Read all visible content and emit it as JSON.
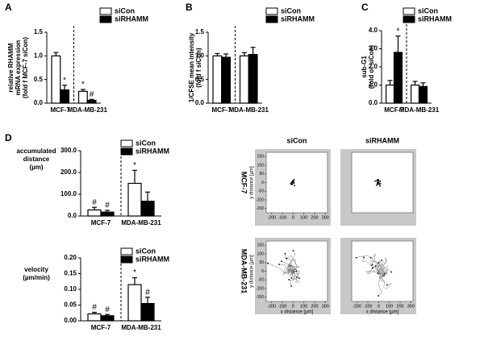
{
  "chart_data": [
    {
      "type": "bar",
      "panel": "A",
      "ylabel": [
        "relative RHAMM",
        "mRNA expression",
        "(fold f MCF-7 siCon)"
      ],
      "categories": [
        "MCF-7",
        "MDA-MB-231"
      ],
      "series": [
        {
          "name": "siCon",
          "color": "#ffffff",
          "values": [
            1.0,
            0.25
          ],
          "errors": [
            0.07,
            0.04
          ],
          "annotations": [
            null,
            "*"
          ]
        },
        {
          "name": "siRHAMM",
          "color": "#000000",
          "values": [
            0.28,
            0.06
          ],
          "errors": [
            0.1,
            0.02
          ],
          "annotations": [
            "*",
            "#"
          ]
        }
      ],
      "ylim": [
        0,
        1.5
      ],
      "yticks": [
        {
          "value": 0,
          "label": "0.0"
        },
        {
          "value": 0.5,
          "label": "0.5"
        },
        {
          "value": 1,
          "label": "1.0"
        },
        {
          "value": 1.5,
          "label": "1.5"
        }
      ]
    },
    {
      "type": "bar",
      "panel": "B",
      "ylabel": [
        "1/CFSE mean intensity",
        "(fold f siCon)"
      ],
      "categories": [
        "MCF-7",
        "MDA-MB-231"
      ],
      "series": [
        {
          "name": "siCon",
          "color": "#ffffff",
          "values": [
            1.0,
            1.0
          ],
          "errors": [
            0.05,
            0.07
          ]
        },
        {
          "name": "siRHAMM",
          "color": "#000000",
          "values": [
            0.97,
            1.03
          ],
          "errors": [
            0.07,
            0.15
          ]
        }
      ],
      "ylim": [
        0,
        1.5
      ],
      "yticks": [
        {
          "value": 0,
          "label": "0.0"
        },
        {
          "value": 0.5,
          "label": "0.5"
        },
        {
          "value": 1,
          "label": "1.0"
        },
        {
          "value": 1.5,
          "label": "1.5"
        }
      ]
    },
    {
      "type": "bar",
      "panel": "C",
      "ylabel": [
        "sub-G1",
        "(fold of siCon)"
      ],
      "categories": [
        "MCF-7",
        "MDA-MB-231"
      ],
      "series": [
        {
          "name": "siCon",
          "color": "#ffffff",
          "values": [
            1.0,
            1.0
          ],
          "errors": [
            0.25,
            0.2
          ],
          "annotations": [
            null,
            null
          ]
        },
        {
          "name": "siRHAMM",
          "color": "#000000",
          "values": [
            2.8,
            0.92
          ],
          "errors": [
            0.9,
            0.2
          ],
          "annotations": [
            "*",
            null
          ]
        }
      ],
      "ylim": [
        0,
        4
      ],
      "yticks": [
        {
          "value": 0,
          "label": "0.0"
        },
        {
          "value": 1,
          "label": "1.0"
        },
        {
          "value": 2,
          "label": "2.0"
        },
        {
          "value": 3,
          "label": "3.0"
        },
        {
          "value": 4,
          "label": "4.0"
        }
      ]
    },
    {
      "type": "bar",
      "panel": "D",
      "ylabel": [
        "accumulated",
        "distance",
        "(µm)"
      ],
      "categories": [
        "MCF-7",
        "MDA-MB-231"
      ],
      "series": [
        {
          "name": "siCon",
          "color": "#ffffff",
          "values": [
            28,
            150
          ],
          "errors": [
            12,
            60
          ],
          "annotations": [
            "#",
            "*"
          ]
        },
        {
          "name": "siRHAMM",
          "color": "#000000",
          "values": [
            18,
            68
          ],
          "errors": [
            8,
            42
          ],
          "annotations": [
            "#",
            null
          ]
        }
      ],
      "ylim": [
        0,
        300
      ],
      "yticks": [
        {
          "value": 0,
          "label": "0.0"
        },
        {
          "value": 100,
          "label": "100.0"
        },
        {
          "value": 200,
          "label": "200.0"
        },
        {
          "value": 300,
          "label": "300.0"
        }
      ]
    },
    {
      "type": "bar",
      "ylabel": [
        "velocity",
        "(µm/min)"
      ],
      "categories": [
        "MCF-7",
        "MDA-MB-231"
      ],
      "series": [
        {
          "name": "siCon",
          "color": "#ffffff",
          "values": [
            0.022,
            0.115
          ],
          "errors": [
            0.005,
            0.022
          ],
          "annotations": [
            "#",
            "*"
          ]
        },
        {
          "name": "siRHAMM",
          "color": "#000000",
          "values": [
            0.016,
            0.055
          ],
          "errors": [
            0.004,
            0.02
          ],
          "annotations": [
            "#",
            "#"
          ]
        }
      ],
      "ylim": [
        0,
        0.2
      ],
      "yticks": [
        {
          "value": 0,
          "label": "0.00"
        },
        {
          "value": 0.05,
          "label": "0.05"
        },
        {
          "value": 0.1,
          "label": "0.10"
        },
        {
          "value": 0.15,
          "label": "0.15"
        },
        {
          "value": 0.2,
          "label": "0.20"
        }
      ]
    },
    {
      "type": "trajectory",
      "column_label": "siCon",
      "row_label": "MCF-7",
      "ylabel": "y distance [µm]",
      "xlim": [
        -250,
        320
      ],
      "ylim": [
        -175,
        175
      ],
      "xticks": [
        -200,
        -100,
        0,
        100,
        200,
        300
      ],
      "yticks": [
        -150,
        -100,
        -50,
        0,
        50,
        100,
        150
      ]
    },
    {
      "type": "trajectory",
      "column_label": "siRHAMM",
      "xlim": [
        -250,
        320
      ],
      "ylim": [
        -175,
        175
      ]
    },
    {
      "type": "trajectory",
      "row_label": "MDA-MB-231",
      "xlabel": "x distance [µm]",
      "ylabel": "y distance [µm]",
      "xlim": [
        -250,
        320
      ],
      "ylim": [
        -175,
        175
      ],
      "xticks": [
        -200,
        -100,
        0,
        100,
        200,
        300
      ],
      "yticks": [
        -150,
        -100,
        -50,
        0,
        50,
        100,
        150
      ]
    },
    {
      "type": "trajectory",
      "xlabel": "x distance [µm]",
      "xlim": [
        -250,
        320
      ],
      "ylim": [
        -175,
        175
      ],
      "xticks": [
        -200,
        -100,
        0,
        100,
        200,
        300
      ]
    }
  ]
}
